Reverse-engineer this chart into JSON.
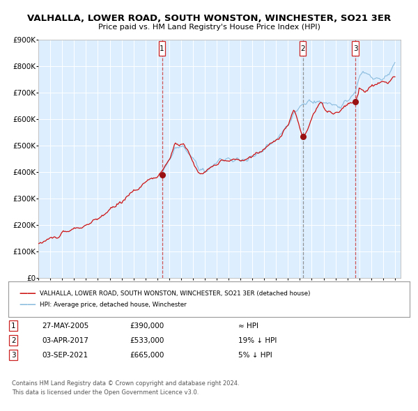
{
  "title1": "VALHALLA, LOWER ROAD, SOUTH WONSTON, WINCHESTER, SO21 3ER",
  "title2": "Price paid vs. HM Land Registry's House Price Index (HPI)",
  "bg_color": "#ddeeff",
  "outer_bg_color": "#ffffff",
  "hpi_color": "#88bbdd",
  "price_color": "#cc1111",
  "marker_color": "#991111",
  "vline_red_color": "#cc4444",
  "vline_grey_color": "#888888",
  "grid_color": "#ffffff",
  "legend_price_label": "VALHALLA, LOWER ROAD, SOUTH WONSTON, WINCHESTER, SO21 3ER (detached house)",
  "legend_hpi_label": "HPI: Average price, detached house, Winchester",
  "footer1": "Contains HM Land Registry data © Crown copyright and database right 2024.",
  "footer2": "This data is licensed under the Open Government Licence v3.0.",
  "table_rows": [
    {
      "num": "1",
      "date": "27-MAY-2005",
      "price": "£390,000",
      "rel": "≈ HPI"
    },
    {
      "num": "2",
      "date": "03-APR-2017",
      "price": "£533,000",
      "rel": "19% ↓ HPI"
    },
    {
      "num": "3",
      "date": "03-SEP-2021",
      "price": "£665,000",
      "rel": "5% ↓ HPI"
    }
  ],
  "p1_t": 2005.4,
  "p2_t": 2017.25,
  "p3_t": 2021.67,
  "p1_v": 390000,
  "p2_v": 533000,
  "p3_v": 665000
}
